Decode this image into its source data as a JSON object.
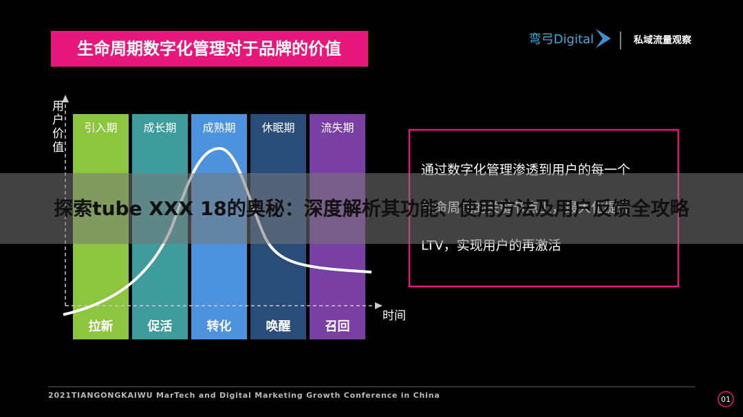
{
  "slide": {
    "title": "生命周期数字化管理对于品牌的价值",
    "brand": "弯弓Digital",
    "brand_tagline": "私域流量观察",
    "y_axis_label": "用户价值",
    "x_axis_label": "时间",
    "stages": [
      {
        "name": "引入期",
        "action": "拉新",
        "color": "#8cc63f"
      },
      {
        "name": "成长期",
        "action": "促活",
        "color": "#3f9c9c"
      },
      {
        "name": "成熟期",
        "action": "转化",
        "color": "#4d92dc"
      },
      {
        "name": "休眠期",
        "action": "唤醒",
        "color": "#294d78"
      },
      {
        "name": "流失期",
        "action": "召回",
        "color": "#7a3fa3"
      }
    ],
    "description_lines": [
      "通过数字化管理渗透到用户的每一个",
      "生命周期的关键节点上，最大化提升",
      "LTV，实现用户的再激活"
    ],
    "footer": "2021TIANGONGKAIWU MarTech and Digital Marketing Growth Conference in China",
    "page_number": "01"
  },
  "overlay": {
    "headline": "探索tube XXX 18的奥秘：深度解析其功能、使用方法及用户反馈全攻略"
  }
}
